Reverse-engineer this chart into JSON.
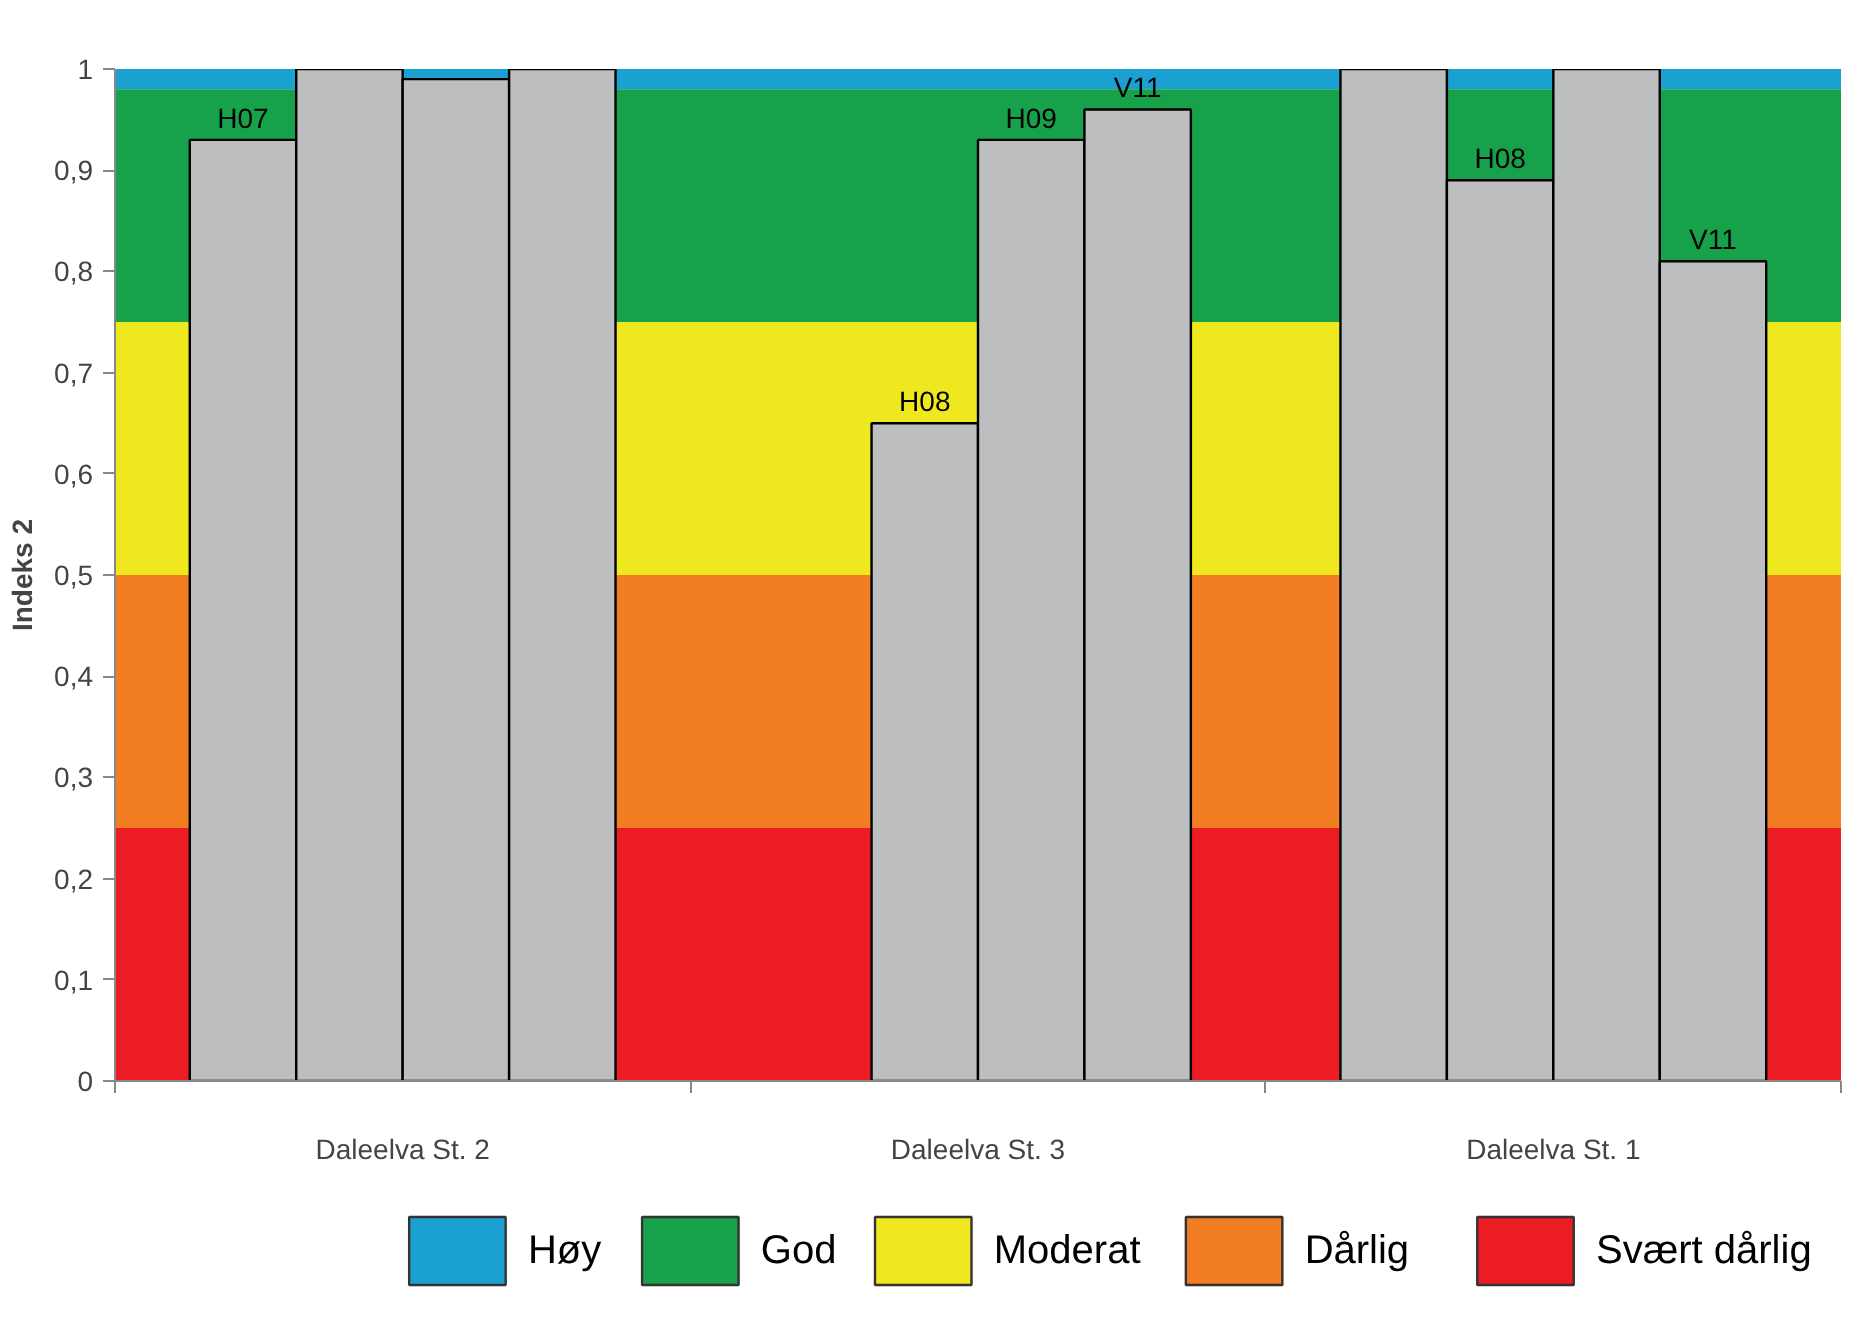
{
  "chart_data": {
    "type": "bar",
    "ylabel": "Indeks 2",
    "categories": [
      "Daleelva St. 2",
      "Daleelva St. 3",
      "Daleelva St. 1"
    ],
    "series": [
      {
        "name": "H07",
        "color": "#bcbec0",
        "values": [
          0.93,
          null,
          1.0
        ]
      },
      {
        "name": "H08",
        "color": "#bcbec0",
        "values": [
          1.0,
          0.65,
          0.89
        ]
      },
      {
        "name": "H09",
        "color": "#bcbec0",
        "values": [
          0.99,
          0.93,
          1.0
        ]
      },
      {
        "name": "V11",
        "color": "#bcbec0",
        "values": [
          1.0,
          0.96,
          0.81
        ]
      }
    ],
    "ylim": [
      0,
      1
    ],
    "yticks": [
      0,
      {
        "value": 0.1,
        "label": "0,1"
      },
      {
        "value": 0.2,
        "label": "0,2"
      },
      {
        "value": 0.3,
        "label": "0,3"
      },
      {
        "value": 0.4,
        "label": "0,4"
      },
      {
        "value": 0.5,
        "label": "0,5"
      },
      {
        "value": 0.6,
        "label": "0,6"
      },
      {
        "value": 0.7,
        "label": "0,7"
      },
      {
        "value": 0.8,
        "label": "0,8"
      },
      {
        "value": 0.9,
        "label": "0,9"
      },
      1
    ],
    "bands": [
      {
        "axis": "y",
        "from": 0.98,
        "to": 1,
        "label": "Høy",
        "color": "#1ba1d1"
      },
      {
        "axis": "y",
        "from": 0.75,
        "to": 0.98,
        "label": "God",
        "color": "#17a14a"
      },
      {
        "axis": "y",
        "from": 0.5,
        "to": 0.75,
        "label": "Moderat",
        "color": "#f0e81e"
      },
      {
        "axis": "y",
        "from": 0.25,
        "to": 0.5,
        "label": "Dårlig",
        "color": "#f37d22"
      },
      {
        "axis": "y",
        "from": 0,
        "to": 0.25,
        "label": "Svært dårlig",
        "color": "#ec1c24"
      }
    ],
    "legend": "bottom"
  }
}
